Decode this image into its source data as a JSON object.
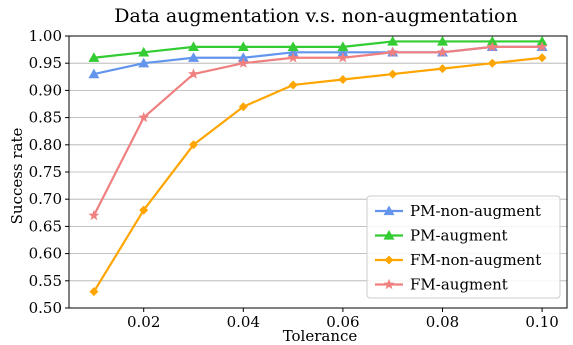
{
  "chart_data": {
    "type": "line",
    "title": "Data augmentation v.s. non-augmentation",
    "xlabel": "Tolerance",
    "ylabel": "Success rate",
    "xlim": [
      0.005,
      0.105
    ],
    "ylim": [
      0.5,
      1.0
    ],
    "x": [
      0.01,
      0.02,
      0.03,
      0.04,
      0.05,
      0.06,
      0.07,
      0.08,
      0.09,
      0.1
    ],
    "xticks": [
      0.02,
      0.04,
      0.06,
      0.08,
      0.1
    ],
    "xtick_labels": [
      "0.02",
      "0.04",
      "0.06",
      "0.08",
      "0.10"
    ],
    "yticks": [
      0.5,
      0.55,
      0.6,
      0.65,
      0.7,
      0.75,
      0.8,
      0.85,
      0.9,
      0.95,
      1.0
    ],
    "ytick_labels": [
      "0.50",
      "0.55",
      "0.60",
      "0.65",
      "0.70",
      "0.75",
      "0.80",
      "0.85",
      "0.90",
      "0.95",
      "1.00"
    ],
    "grid": "horizontal",
    "legend_position": "bottom-right",
    "series": [
      {
        "name": "PM-non-augment",
        "marker": "triangle",
        "color": "#6495ED",
        "values": [
          0.93,
          0.95,
          0.96,
          0.96,
          0.97,
          0.97,
          0.97,
          0.97,
          0.98,
          0.98
        ]
      },
      {
        "name": "PM-augment",
        "marker": "triangle",
        "color": "#33CC33",
        "values": [
          0.96,
          0.97,
          0.98,
          0.98,
          0.98,
          0.98,
          0.99,
          0.99,
          0.99,
          0.99
        ]
      },
      {
        "name": "FM-non-augment",
        "marker": "diamond",
        "color": "#FFA500",
        "values": [
          0.53,
          0.68,
          0.8,
          0.87,
          0.91,
          0.92,
          0.93,
          0.94,
          0.95,
          0.96
        ]
      },
      {
        "name": "FM-augment",
        "marker": "star",
        "color": "#F08080",
        "values": [
          0.67,
          0.85,
          0.93,
          0.95,
          0.96,
          0.96,
          0.97,
          0.97,
          0.98,
          0.98
        ]
      }
    ]
  }
}
